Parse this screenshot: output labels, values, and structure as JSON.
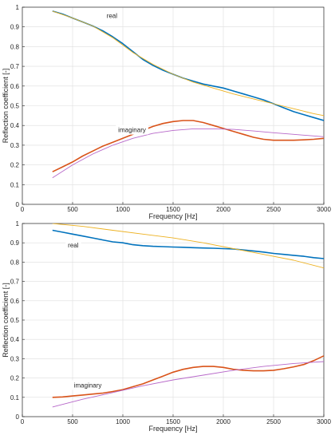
{
  "colors": {
    "measured_real": "#0072BD",
    "fit_real": "#EDB120",
    "measured_imag": "#D95319",
    "fit_imag": "#B768C9",
    "grid": "#dedede",
    "axis": "#262626"
  },
  "chart_data": [
    {
      "type": "line",
      "xlabel": "Frequency [Hz]",
      "ylabel": "Reflection coefficient [-]",
      "xlim": [
        0,
        3000
      ],
      "ylim": [
        0,
        1
      ],
      "grid": true,
      "xticks": [
        0,
        500,
        1000,
        1500,
        2000,
        2500,
        3000
      ],
      "yticks": [
        0,
        0.1,
        0.2,
        0.3,
        0.4,
        0.5,
        0.6,
        0.7,
        0.8,
        0.9,
        1
      ],
      "xtick_labels": [
        "0",
        "500",
        "1000",
        "1500",
        "2000",
        "2500",
        "3000"
      ],
      "ytick_labels": [
        "0",
        "0.1",
        "0.2",
        "0.3",
        "0.4",
        "0.5",
        "0.6",
        "0.7",
        "0.8",
        "0.9",
        "1"
      ],
      "annotations": [
        {
          "text": "real",
          "x": 815,
          "y": 0.95
        },
        {
          "text": "imaginary",
          "x": 930,
          "y": 0.37
        }
      ],
      "series": [
        {
          "role": "measured-real",
          "color": "#0072BD",
          "x": [
            300,
            400,
            500,
            600,
            700,
            800,
            900,
            1000,
            1100,
            1200,
            1300,
            1400,
            1500,
            1600,
            1700,
            1800,
            1900,
            2000,
            2100,
            2200,
            2300,
            2400,
            2500,
            2600,
            2700,
            2800,
            2900,
            3000
          ],
          "y": [
            0.98,
            0.965,
            0.945,
            0.925,
            0.905,
            0.88,
            0.85,
            0.815,
            0.775,
            0.735,
            0.705,
            0.68,
            0.66,
            0.64,
            0.625,
            0.61,
            0.6,
            0.59,
            0.575,
            0.56,
            0.545,
            0.53,
            0.51,
            0.49,
            0.47,
            0.455,
            0.44,
            0.425
          ]
        },
        {
          "role": "fit-real",
          "color": "#EDB120",
          "x": [
            300,
            500,
            700,
            900,
            1100,
            1300,
            1500,
            1700,
            1900,
            2100,
            2300,
            2500,
            2700,
            2900,
            3000
          ],
          "y": [
            0.98,
            0.945,
            0.905,
            0.845,
            0.77,
            0.71,
            0.66,
            0.62,
            0.59,
            0.56,
            0.535,
            0.51,
            0.485,
            0.46,
            0.45
          ]
        },
        {
          "role": "measured-imag",
          "color": "#D95319",
          "x": [
            300,
            400,
            500,
            600,
            700,
            800,
            900,
            1000,
            1100,
            1200,
            1300,
            1400,
            1500,
            1600,
            1700,
            1800,
            1900,
            2000,
            2100,
            2200,
            2300,
            2400,
            2500,
            2600,
            2700,
            2800,
            2900,
            3000
          ],
          "y": [
            0.165,
            0.19,
            0.215,
            0.245,
            0.27,
            0.295,
            0.315,
            0.335,
            0.355,
            0.375,
            0.395,
            0.41,
            0.42,
            0.425,
            0.425,
            0.415,
            0.4,
            0.385,
            0.37,
            0.355,
            0.34,
            0.33,
            0.325,
            0.325,
            0.325,
            0.327,
            0.33,
            0.335
          ]
        },
        {
          "role": "fit-imag",
          "color": "#B768C9",
          "x": [
            300,
            500,
            700,
            900,
            1100,
            1300,
            1500,
            1700,
            1900,
            2100,
            2300,
            2500,
            2700,
            2900,
            3000
          ],
          "y": [
            0.135,
            0.2,
            0.255,
            0.3,
            0.335,
            0.36,
            0.375,
            0.383,
            0.383,
            0.38,
            0.372,
            0.363,
            0.355,
            0.347,
            0.343
          ]
        }
      ]
    },
    {
      "type": "line",
      "xlabel": "Frequency [Hz]",
      "ylabel": "Reflection coefficient [-]",
      "xlim": [
        0,
        3000
      ],
      "ylim": [
        0,
        1
      ],
      "grid": true,
      "xticks": [
        0,
        500,
        1000,
        1500,
        2000,
        2500,
        3000
      ],
      "yticks": [
        0,
        0.1,
        0.2,
        0.3,
        0.4,
        0.5,
        0.6,
        0.7,
        0.8,
        0.9,
        1
      ],
      "xtick_labels": [
        "0",
        "500",
        "1000",
        "1500",
        "2000",
        "2500",
        "3000"
      ],
      "ytick_labels": [
        "0",
        "0.1",
        "0.2",
        "0.3",
        "0.4",
        "0.5",
        "0.6",
        "0.7",
        "0.8",
        "0.9",
        "1"
      ],
      "annotations": [
        {
          "text": "real",
          "x": 430,
          "y": 0.88
        },
        {
          "text": "imaginary",
          "x": 490,
          "y": 0.155
        }
      ],
      "series": [
        {
          "role": "measured-real",
          "color": "#0072BD",
          "x": [
            300,
            400,
            500,
            600,
            700,
            800,
            900,
            1000,
            1100,
            1200,
            1300,
            1400,
            1500,
            1600,
            1700,
            1800,
            1900,
            2000,
            2100,
            2200,
            2300,
            2400,
            2500,
            2600,
            2700,
            2800,
            2900,
            3000
          ],
          "y": [
            0.965,
            0.955,
            0.945,
            0.935,
            0.925,
            0.915,
            0.905,
            0.9,
            0.89,
            0.885,
            0.882,
            0.88,
            0.878,
            0.877,
            0.875,
            0.873,
            0.872,
            0.87,
            0.868,
            0.863,
            0.858,
            0.852,
            0.845,
            0.84,
            0.835,
            0.83,
            0.823,
            0.818
          ]
        },
        {
          "role": "fit-real",
          "color": "#EDB120",
          "x": [
            300,
            600,
            900,
            1200,
            1500,
            1800,
            2100,
            2400,
            2700,
            3000
          ],
          "y": [
            1.0,
            0.985,
            0.965,
            0.945,
            0.925,
            0.9,
            0.87,
            0.84,
            0.81,
            0.77
          ]
        },
        {
          "role": "measured-imag",
          "color": "#D95319",
          "x": [
            300,
            400,
            500,
            600,
            700,
            800,
            900,
            1000,
            1100,
            1200,
            1300,
            1400,
            1500,
            1600,
            1700,
            1800,
            1900,
            2000,
            2100,
            2200,
            2300,
            2400,
            2500,
            2600,
            2700,
            2800,
            2900,
            3000
          ],
          "y": [
            0.1,
            0.102,
            0.107,
            0.112,
            0.117,
            0.122,
            0.13,
            0.14,
            0.155,
            0.17,
            0.19,
            0.21,
            0.23,
            0.245,
            0.255,
            0.26,
            0.26,
            0.255,
            0.245,
            0.24,
            0.237,
            0.237,
            0.24,
            0.248,
            0.258,
            0.27,
            0.29,
            0.315
          ]
        },
        {
          "role": "fit-imag",
          "color": "#B768C9",
          "x": [
            300,
            600,
            900,
            1200,
            1500,
            1800,
            2100,
            2400,
            2700,
            3000
          ],
          "y": [
            0.05,
            0.09,
            0.125,
            0.16,
            0.19,
            0.215,
            0.24,
            0.26,
            0.275,
            0.285
          ]
        }
      ]
    }
  ]
}
